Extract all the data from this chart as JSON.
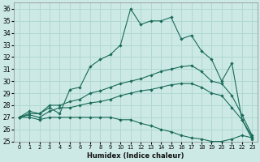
{
  "xlabel": "Humidex (Indice chaleur)",
  "xlim": [
    -0.5,
    23.5
  ],
  "ylim": [
    25,
    36.5
  ],
  "yticks": [
    25,
    26,
    27,
    28,
    29,
    30,
    31,
    32,
    33,
    34,
    35,
    36
  ],
  "xticks": [
    0,
    1,
    2,
    3,
    4,
    5,
    6,
    7,
    8,
    9,
    10,
    11,
    12,
    13,
    14,
    15,
    16,
    17,
    18,
    19,
    20,
    21,
    22,
    23
  ],
  "background_color": "#cce9e5",
  "grid_color": "#b0d8d2",
  "line_color": "#1a6b5a",
  "line1_y": [
    27.0,
    27.5,
    27.3,
    27.8,
    27.3,
    29.3,
    29.5,
    31.2,
    31.8,
    32.2,
    33.0,
    36.0,
    34.7,
    35.0,
    35.0,
    35.3,
    33.5,
    33.8,
    32.5,
    31.8,
    30.0,
    31.5,
    26.8,
    25.2
  ],
  "line2_y": [
    27.0,
    27.3,
    27.3,
    28.0,
    28.0,
    28.3,
    28.5,
    29.0,
    29.2,
    29.5,
    29.8,
    30.0,
    30.2,
    30.5,
    30.8,
    31.0,
    31.2,
    31.3,
    30.8,
    30.0,
    29.8,
    28.8,
    27.2,
    25.5
  ],
  "line3_y": [
    27.0,
    27.2,
    27.0,
    27.5,
    27.8,
    27.8,
    28.0,
    28.2,
    28.3,
    28.5,
    28.8,
    29.0,
    29.2,
    29.3,
    29.5,
    29.7,
    29.8,
    29.8,
    29.5,
    29.0,
    28.8,
    27.8,
    26.8,
    25.4
  ],
  "line4_y": [
    27.0,
    27.0,
    26.8,
    27.0,
    27.0,
    27.0,
    27.0,
    27.0,
    27.0,
    27.0,
    26.8,
    26.8,
    26.5,
    26.3,
    26.0,
    25.8,
    25.5,
    25.3,
    25.2,
    25.0,
    25.0,
    25.2,
    25.5,
    25.3
  ]
}
